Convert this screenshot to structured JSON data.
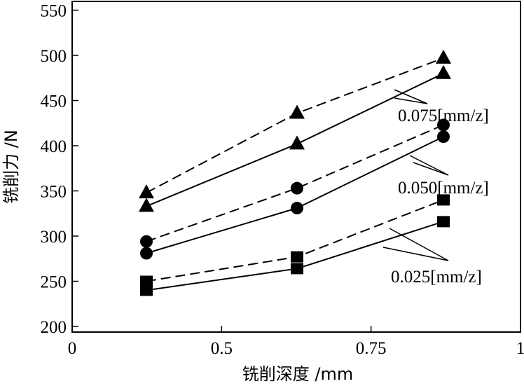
{
  "chart_data": {
    "type": "line",
    "xlabel": "铣削深度 /mm",
    "ylabel": "铣削力 /N",
    "xlim": [
      0,
      1
    ],
    "ylim": [
      200,
      570
    ],
    "x_tick_labels": [
      "0",
      "0.5",
      "0.75",
      "1"
    ],
    "y_ticks": [
      200,
      250,
      300,
      350,
      400,
      450,
      500,
      550
    ],
    "grid": false,
    "annotations": [
      "0.075[mm/z]",
      "0.050[mm/z]",
      "0.025[mm/z]"
    ],
    "series": [
      {
        "group": "0.075[mm/z]",
        "style": "dashed",
        "marker": "triangle",
        "x": [
          0.25,
          0.5,
          0.75
        ],
        "y": [
          348,
          436,
          497
        ]
      },
      {
        "group": "0.075[mm/z]",
        "style": "solid",
        "marker": "triangle",
        "x": [
          0.25,
          0.5,
          0.75
        ],
        "y": [
          333,
          402,
          480
        ]
      },
      {
        "group": "0.050[mm/z]",
        "style": "dashed",
        "marker": "circle",
        "x": [
          0.25,
          0.5,
          0.75
        ],
        "y": [
          294,
          353,
          423
        ]
      },
      {
        "group": "0.050[mm/z]",
        "style": "solid",
        "marker": "circle",
        "x": [
          0.25,
          0.5,
          0.75
        ],
        "y": [
          281,
          331,
          410
        ]
      },
      {
        "group": "0.025[mm/z]",
        "style": "dashed",
        "marker": "square",
        "x": [
          0.25,
          0.5,
          0.75
        ],
        "y": [
          250,
          277,
          340
        ]
      },
      {
        "group": "0.025[mm/z]",
        "style": "solid",
        "marker": "square",
        "x": [
          0.25,
          0.5,
          0.75
        ],
        "y": [
          240,
          264,
          316
        ]
      }
    ]
  }
}
